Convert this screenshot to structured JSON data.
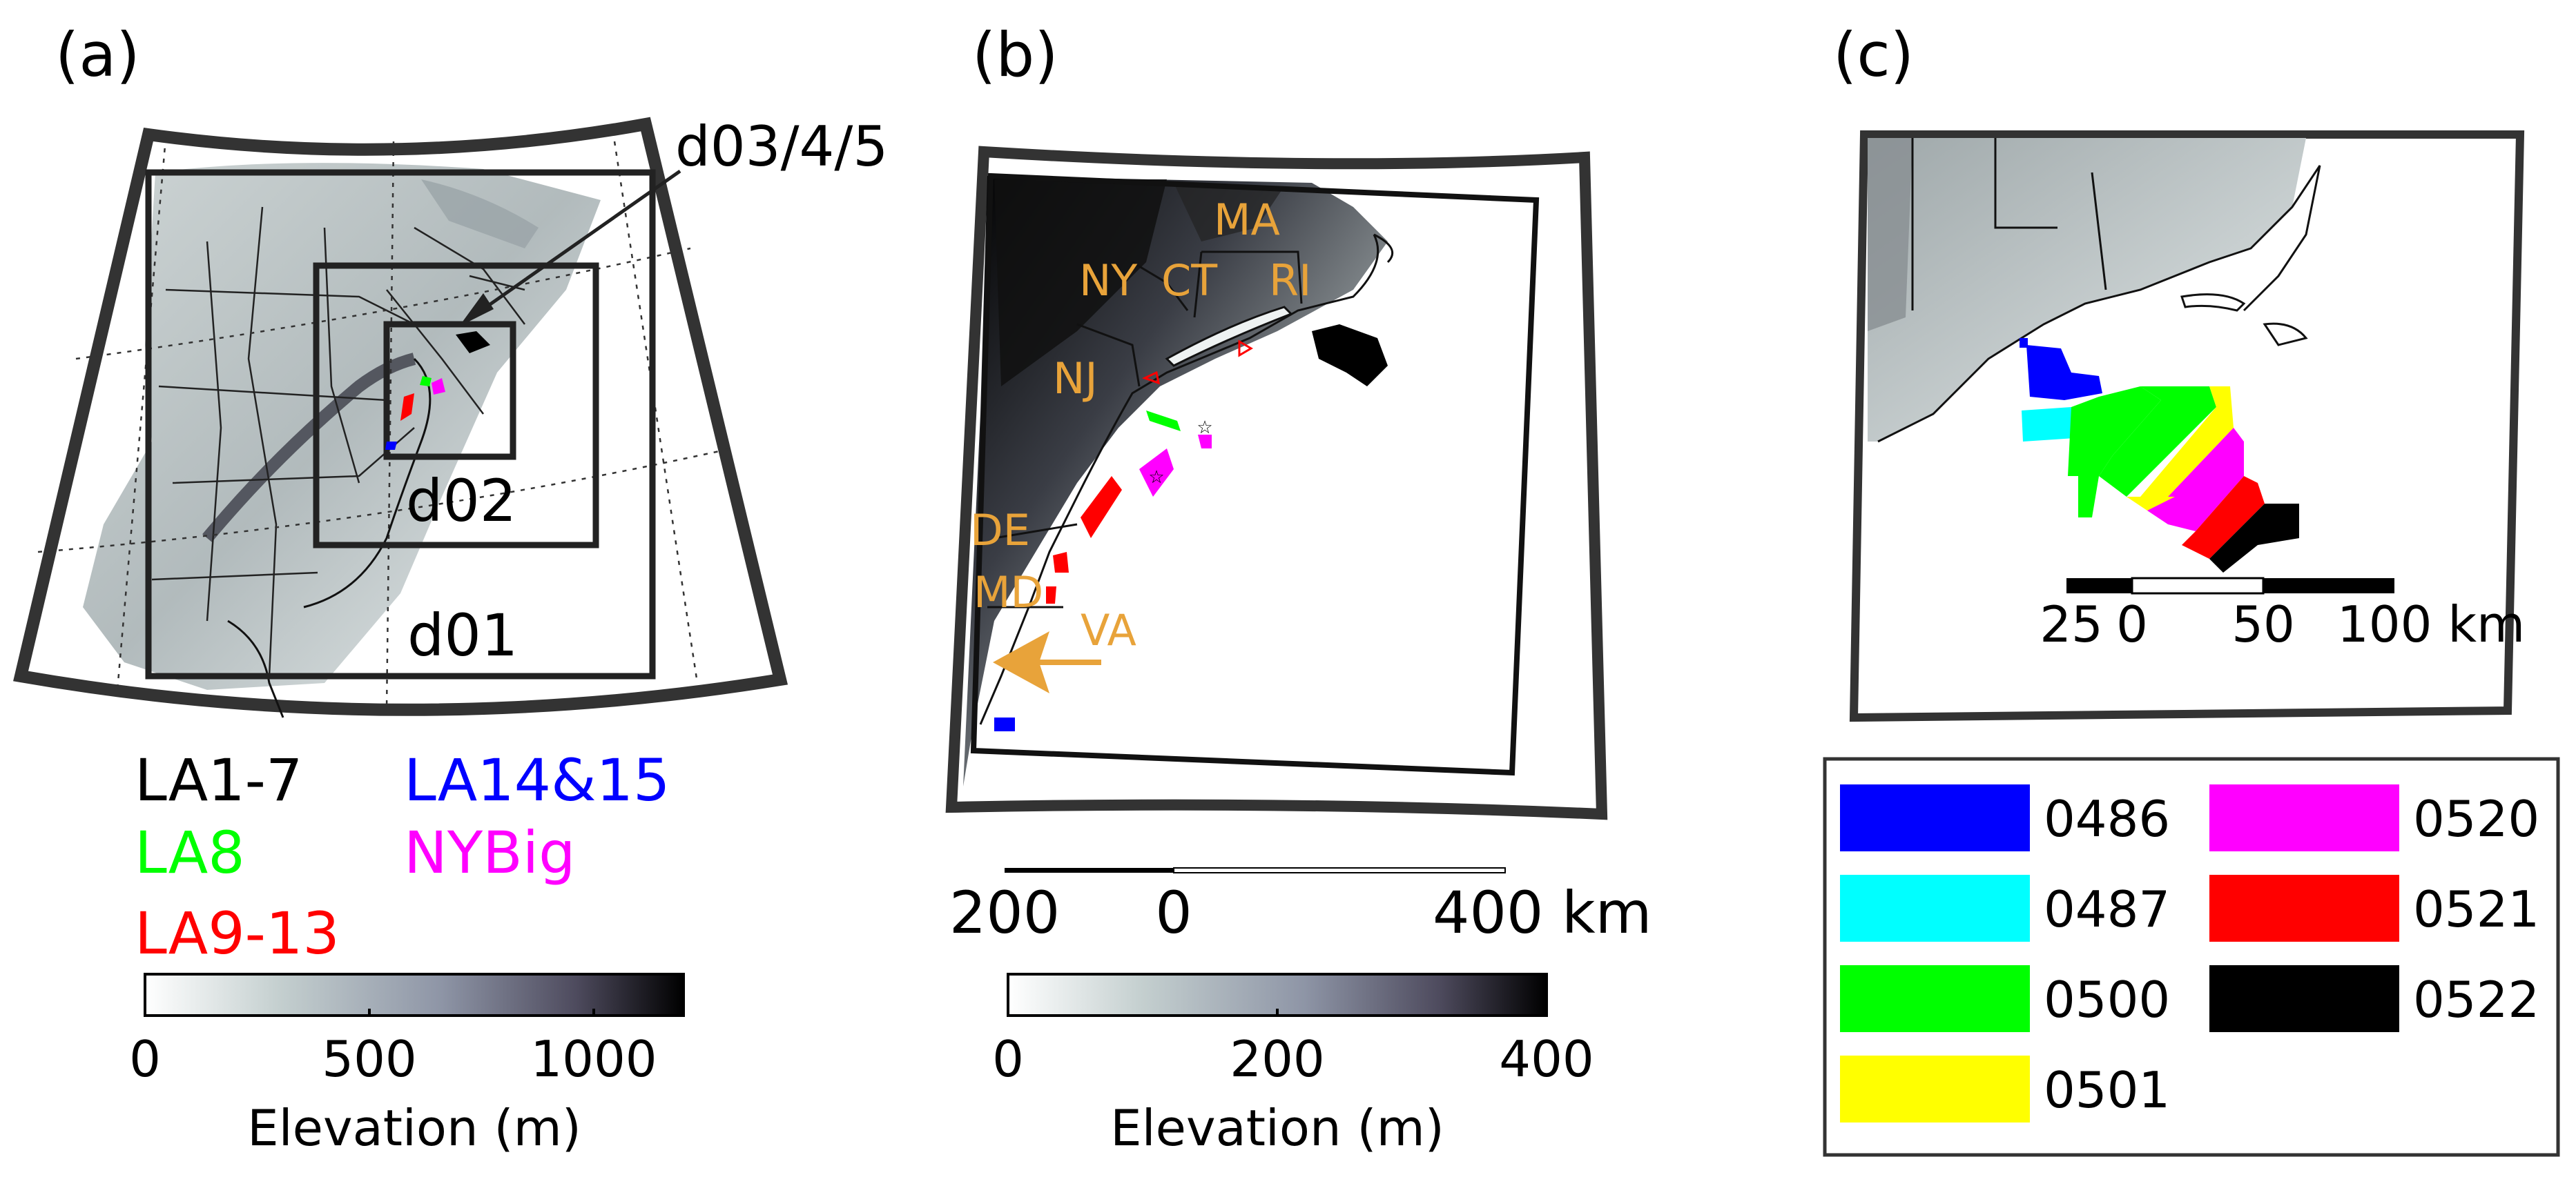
{
  "panels": {
    "a": {
      "label": "(a)",
      "domains": {
        "d01": "d01",
        "d02": "d02",
        "inner": "d03/4/5"
      },
      "legend": {
        "la1_7": "LA1-7",
        "la14_15": "LA14&15",
        "la8": "LA8",
        "nybig": "NYBig",
        "la9_13": "LA9-13"
      },
      "colorbar": {
        "ticks": [
          "0",
          "500",
          "1000"
        ],
        "label": "Elevation (m)",
        "min": 0,
        "max": 1200
      }
    },
    "b": {
      "label": "(b)",
      "states": {
        "ma": "MA",
        "ny": "NY",
        "ct": "CT",
        "ri": "RI",
        "nj": "NJ",
        "de": "DE",
        "md": "MD",
        "va": "VA"
      },
      "scalebar": {
        "t200": "200",
        "t0": "0",
        "t400": "400 km"
      },
      "colorbar": {
        "ticks": [
          "0",
          "200",
          "400"
        ],
        "label": "Elevation (m)",
        "min": 0,
        "max": 400
      }
    },
    "c": {
      "label": "(c)",
      "scalebar": {
        "t25": "25",
        "t0": "0",
        "t50": "50",
        "t100": "100 km"
      },
      "legend": [
        {
          "code": "0486",
          "color": "#0000ff"
        },
        {
          "code": "0487",
          "color": "#00ffff"
        },
        {
          "code": "0500",
          "color": "#00ff00"
        },
        {
          "code": "0501",
          "color": "#ffff00"
        },
        {
          "code": "0520",
          "color": "#ff00ff"
        },
        {
          "code": "0521",
          "color": "#ff0000"
        },
        {
          "code": "0522",
          "color": "#000000"
        }
      ]
    }
  },
  "colors": {
    "state_label": "#e8a33a",
    "terrain_dark": "#1a1a26",
    "terrain_light": "#eef2f2"
  }
}
